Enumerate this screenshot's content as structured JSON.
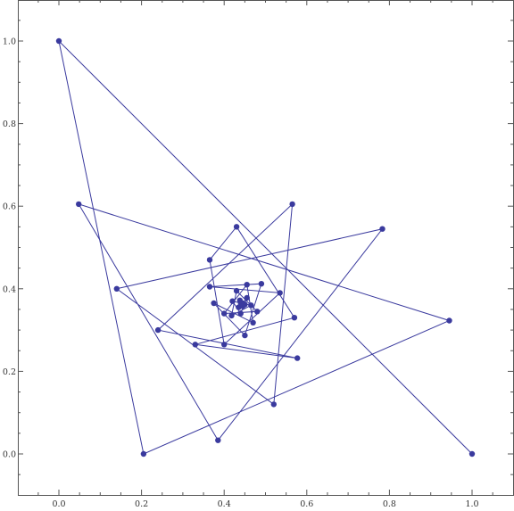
{
  "chart_data": {
    "type": "scatter",
    "title": "",
    "xlabel": "",
    "ylabel": "",
    "xlim": [
      -0.12,
      1.1
    ],
    "ylim": [
      -0.1,
      1.1
    ],
    "xticks": [
      0.0,
      0.2,
      0.4,
      0.6,
      0.8,
      1.0
    ],
    "yticks": [
      0.0,
      0.2,
      0.4,
      0.6,
      0.8,
      1.0
    ],
    "xtick_labels": [
      "0.0",
      "0.2",
      "0.4",
      "0.6",
      "0.8",
      "1.0"
    ],
    "ytick_labels": [
      "0.0",
      "0.2",
      "0.4",
      "0.6",
      "0.8",
      "1.0"
    ],
    "grid": false,
    "color": "#3a3a9e",
    "series": [
      {
        "connected": true,
        "points": [
          [
            1.0,
            0.0
          ],
          [
            0.0,
            1.0
          ],
          [
            0.205,
            0.0
          ],
          [
            0.945,
            0.323
          ],
          [
            0.048,
            0.605
          ],
          [
            0.385,
            0.033
          ],
          [
            0.783,
            0.545
          ],
          [
            0.14,
            0.4
          ],
          [
            0.52,
            0.12
          ],
          [
            0.565,
            0.605
          ],
          [
            0.24,
            0.3
          ],
          [
            0.577,
            0.232
          ],
          [
            0.33,
            0.265
          ],
          [
            0.57,
            0.33
          ],
          [
            0.43,
            0.55
          ],
          [
            0.365,
            0.47
          ],
          [
            0.4,
            0.265
          ],
          [
            0.535,
            0.39
          ],
          [
            0.365,
            0.405
          ],
          [
            0.49,
            0.412
          ],
          [
            0.45,
            0.287
          ],
          [
            0.375,
            0.365
          ],
          [
            0.47,
            0.318
          ],
          [
            0.455,
            0.41
          ],
          [
            0.4,
            0.34
          ],
          [
            0.48,
            0.345
          ],
          [
            0.43,
            0.395
          ],
          [
            0.418,
            0.335
          ],
          [
            0.465,
            0.36
          ],
          [
            0.42,
            0.37
          ],
          [
            0.44,
            0.34
          ],
          [
            0.455,
            0.378
          ],
          [
            0.435,
            0.355
          ],
          [
            0.45,
            0.362
          ],
          [
            0.438,
            0.372
          ],
          [
            0.445,
            0.358
          ],
          [
            0.44,
            0.366
          ],
          [
            0.446,
            0.364
          ],
          [
            0.441,
            0.363
          ],
          [
            0.444,
            0.365
          ],
          [
            0.442,
            0.364
          ],
          [
            0.443,
            0.364
          ]
        ]
      }
    ]
  }
}
